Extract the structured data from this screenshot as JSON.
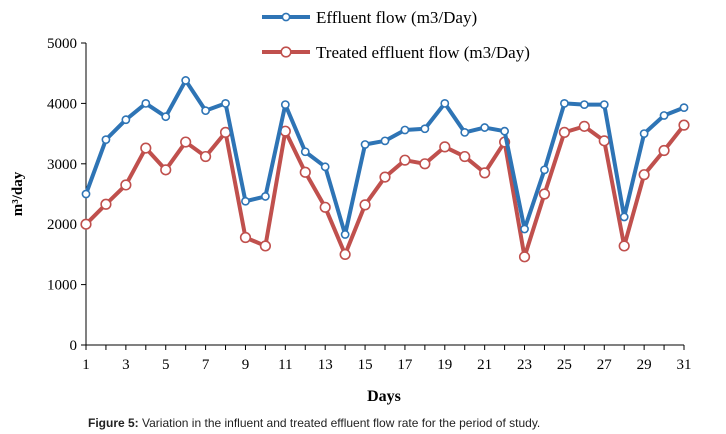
{
  "chart_data": {
    "type": "line",
    "xlabel": "Days",
    "ylabel": "m³/day",
    "ylim": [
      0,
      5000
    ],
    "xlim": [
      1,
      31
    ],
    "y_ticks": [
      "0",
      "1000",
      "2000",
      "3000",
      "4000",
      "5000"
    ],
    "x_ticks": [
      "1",
      "3",
      "5",
      "7",
      "9",
      "11",
      "13",
      "15",
      "17",
      "19",
      "21",
      "23",
      "25",
      "27",
      "29",
      "31"
    ],
    "grid": false,
    "legend_position": "top",
    "x": [
      1,
      2,
      3,
      4,
      5,
      6,
      7,
      8,
      9,
      10,
      11,
      12,
      13,
      14,
      15,
      16,
      17,
      18,
      19,
      20,
      21,
      22,
      23,
      24,
      25,
      26,
      27,
      28,
      29,
      30,
      31
    ],
    "series": [
      {
        "name": "Effluent flow (m3/Day)",
        "color": "#2e74b5",
        "values": [
          2500,
          3400,
          3730,
          4000,
          3780,
          4380,
          3880,
          4000,
          2380,
          2460,
          3980,
          3200,
          2950,
          1830,
          3320,
          3380,
          3560,
          3580,
          4000,
          3520,
          3600,
          3540,
          1920,
          2900,
          4000,
          3980,
          3980,
          2120,
          3500,
          3800,
          3930
        ]
      },
      {
        "name": "Treated effluent flow (m3/Day)",
        "color": "#c0504d",
        "values": [
          2000,
          2330,
          2650,
          3260,
          2900,
          3360,
          3120,
          3520,
          1780,
          1640,
          3540,
          2860,
          2280,
          1500,
          2320,
          2780,
          3060,
          3000,
          3280,
          3120,
          2850,
          3360,
          1460,
          2500,
          3520,
          3620,
          3380,
          1640,
          2820,
          3220,
          3640
        ]
      }
    ]
  },
  "caption": {
    "label": "Figure 5:",
    "text": " Variation in the influent and treated effluent flow rate for the period of study."
  }
}
